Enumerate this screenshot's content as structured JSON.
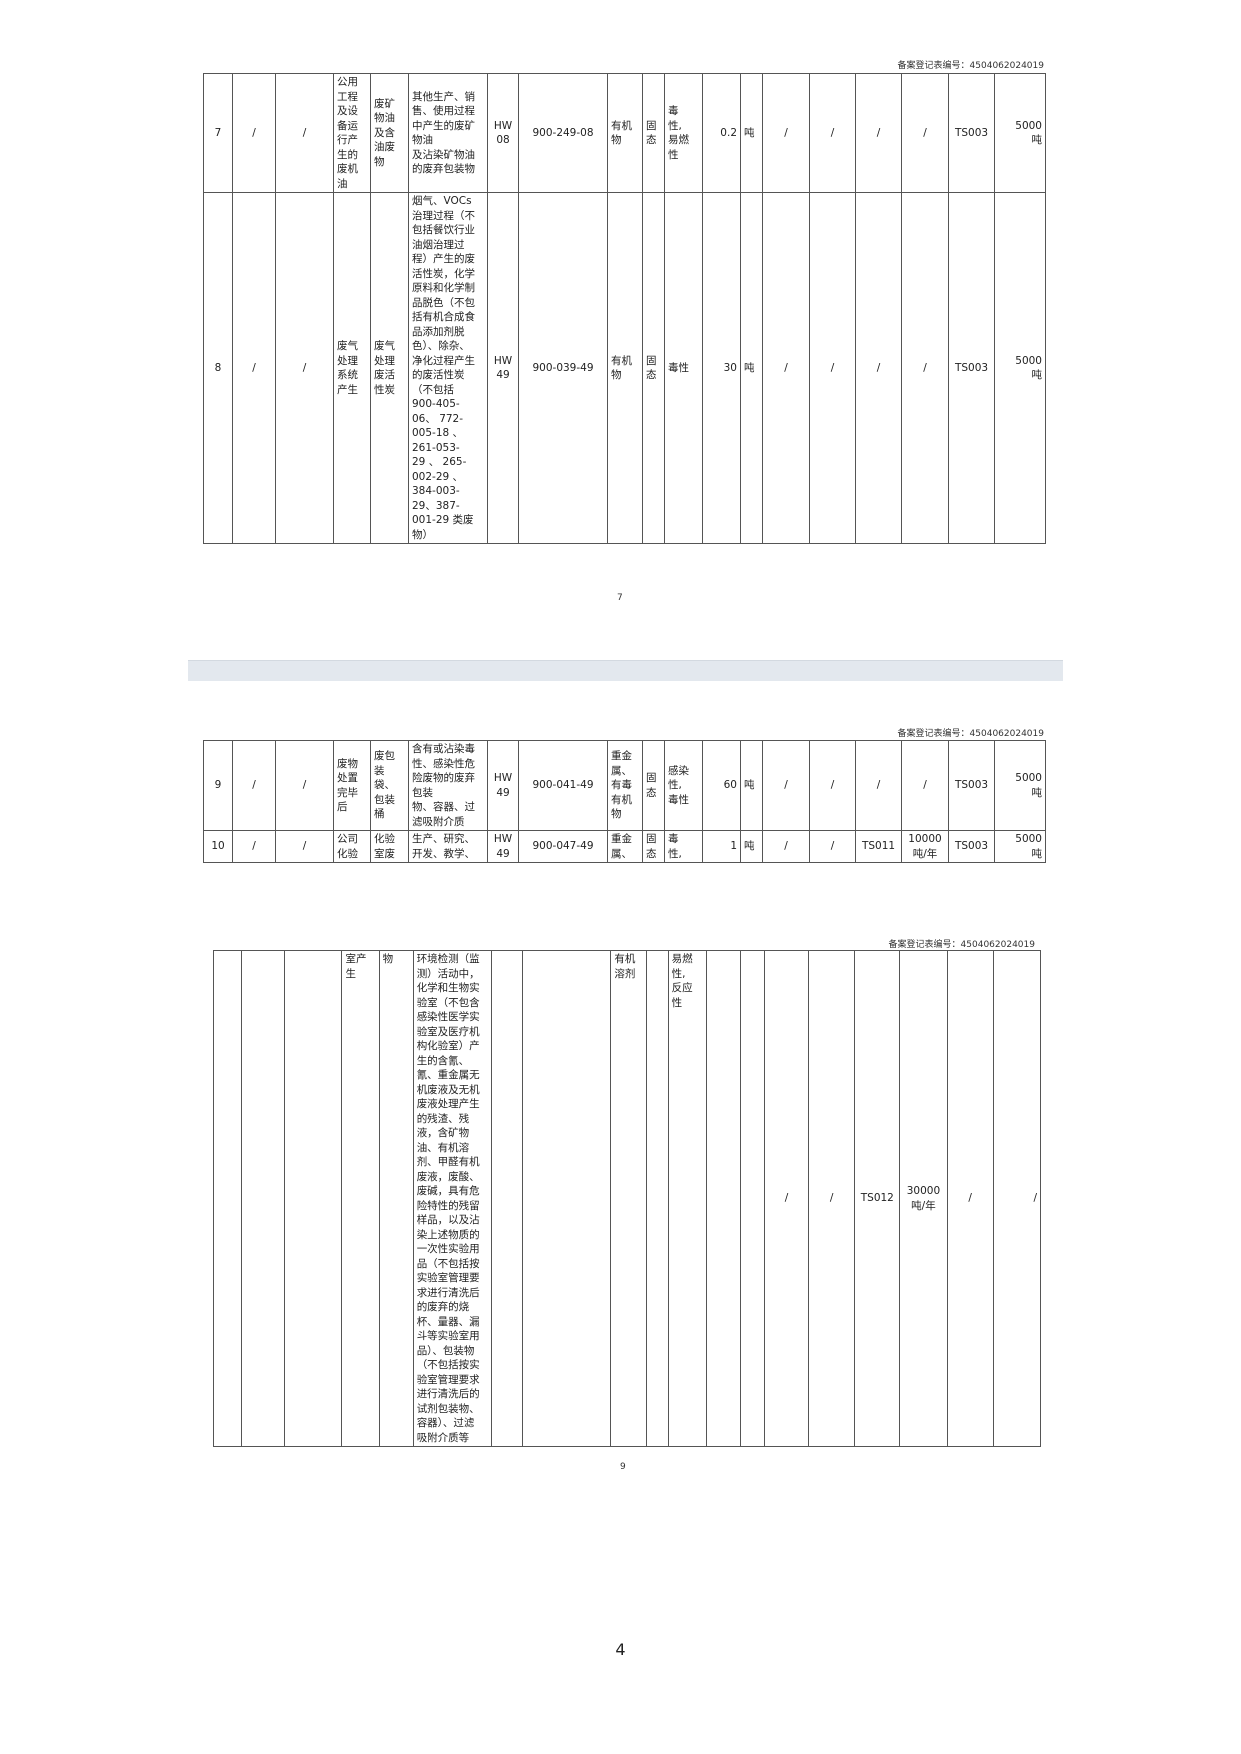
{
  "registration_label": "备案登记表编号：4504062024019",
  "sections": [
    {
      "rows": [
        [
          "7",
          "/",
          "/",
          "公用\n工程\n及设\n备运\n行产\n生的\n废机\n油",
          "废矿\n物油\n及含\n油废\n物",
          "其他生产、销\n售、使用过程\n中产生的废矿\n物油\n及沾染矿物油\n的废弃包装物",
          "HW\n08",
          "900-249-08",
          "有机\n物",
          "固\n态",
          "毒\n性,\n易燃\n性",
          "0.2",
          "吨",
          "/",
          "/",
          "/",
          "/",
          "TS003",
          "5000\n吨"
        ],
        [
          "8",
          "/",
          "/",
          "废气\n处理\n系统\n产生",
          "废气\n处理\n废活\n性炭",
          "烟气、VOCs\n治理过程（不\n包括餐饮行业\n油烟治理过\n程）产生的废\n活性炭，化学\n原料和化学制\n品脱色（不包\n括有机合成食\n品添加剂脱\n色）、除杂、\n净化过程产生\n的废活性炭\n（不包括\n900-405-\n06、 772-\n005-18 、\n261-053-\n29 、 265-\n002-29 、\n384-003-\n29、387-\n001-29 类废\n物）",
          "HW\n49",
          "900-039-49",
          "有机\n物",
          "固\n态",
          "毒性",
          "30",
          "吨",
          "/",
          "/",
          "/",
          "/",
          "TS003",
          "5000\n吨"
        ]
      ],
      "page_number": "7"
    },
    {
      "rows": [
        [
          "9",
          "/",
          "/",
          "废物\n处置\n完毕\n后",
          "废包\n装\n袋、\n包装\n桶",
          "含有或沾染毒\n性、感染性危\n险废物的废弃\n包装\n物、容器、过\n滤吸附介质",
          "HW\n49",
          "900-041-49",
          "重金\n属、\n有毒\n有机\n物",
          "固\n态",
          "感染\n性,\n毒性",
          "60",
          "吨",
          "/",
          "/",
          "/",
          "/",
          "TS003",
          "5000\n吨"
        ],
        [
          "10",
          "/",
          "/",
          "公司\n化验",
          "化验\n室废",
          "生产、研究、\n开发、教学、",
          "HW\n49",
          "900-047-49",
          "重金\n属、",
          "固\n态",
          "毒\n性,",
          "1",
          "吨",
          "/",
          "/",
          "TS011",
          "10000\n吨/年",
          "TS003",
          "5000\n吨"
        ]
      ]
    },
    {
      "rows": [
        [
          "",
          "",
          "",
          "室产\n生",
          "物",
          "环境检测（监\n测）活动中，\n化学和生物实\n验室（不包含\n感染性医学实\n验室及医疗机\n构化验室）产\n生的含氰、\n氰、重金属无\n机废液及无机\n废液处理产生\n的残渣、残\n液，含矿物\n油、有机溶\n剂、甲醛有机\n废液，废酸、\n废碱，具有危\n险特性的残留\n样品，以及沾\n染上述物质的\n一次性实验用\n品（不包括按\n实验室管理要\n求进行清洗后\n的废弃的烧\n杯、量器、漏\n斗等实验室用\n品）、包装物\n（不包括按实\n验室管理要求\n进行清洗后的\n试剂包装物、\n容器）、过滤\n吸附介质等",
          "",
          "",
          "有机\n溶剂",
          "",
          "易燃\n性,\n反应\n性",
          "",
          "",
          "/",
          "/",
          "TS012",
          "30000\n吨/年",
          "/",
          "/"
        ]
      ],
      "page_number": "9"
    }
  ],
  "footer_page_number": "4"
}
